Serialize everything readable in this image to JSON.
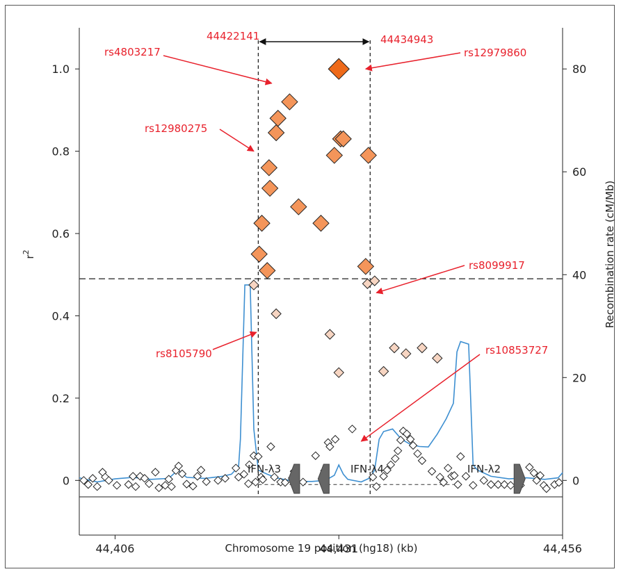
{
  "chart_data": {
    "type": "scatter",
    "xlabel": "Chromosome 19 position (hg18) (kb)",
    "ylabel": "r²",
    "y2label": "Recombination rate (cM/Mb)",
    "xlim": [
      44402,
      44456
    ],
    "ylim": [
      -0.04,
      1.1
    ],
    "y2lim": [
      -3.2,
      88
    ],
    "x_ticks": [
      44406,
      44431,
      44456
    ],
    "x_tick_labels": [
      "44,406",
      "44,431",
      "44,456"
    ],
    "y_ticks": [
      0,
      0.2,
      0.4,
      0.6,
      0.8,
      1.0
    ],
    "y_tick_labels": [
      "0",
      "0.2",
      "0.4",
      "0.6",
      "0.8",
      "1.0"
    ],
    "y2_ticks": [
      0,
      20,
      40,
      60,
      80
    ],
    "y2_tick_labels": [
      "0",
      "20",
      "40",
      "60",
      "80"
    ],
    "threshold_r2": 0.49,
    "region": {
      "start": 44422.0,
      "end": 44434.5,
      "start_label": "44422141",
      "end_label": "44434943"
    },
    "lead_snp": {
      "x": 44431.0,
      "y": 1.0,
      "color": "#ee6a1a"
    },
    "high_ld_points": {
      "color": "#f4955a",
      "points": [
        [
          44422.1,
          0.55
        ],
        [
          44422.4,
          0.625
        ],
        [
          44423.2,
          0.76
        ],
        [
          44423.3,
          0.71
        ],
        [
          44423.0,
          0.51
        ],
        [
          44424.0,
          0.845
        ],
        [
          44424.2,
          0.88
        ],
        [
          44425.5,
          0.92
        ],
        [
          44426.5,
          0.665
        ],
        [
          44429.0,
          0.625
        ],
        [
          44430.5,
          0.79
        ],
        [
          44431.2,
          0.83
        ],
        [
          44431.5,
          0.83
        ],
        [
          44434.0,
          0.52
        ],
        [
          44434.3,
          0.79
        ]
      ]
    },
    "low_ld_points": {
      "color": "#f7d5c2",
      "points": [
        [
          44421.5,
          0.475
        ],
        [
          44424.0,
          0.405
        ],
        [
          44430.0,
          0.355
        ],
        [
          44431.0,
          0.262
        ],
        [
          44434.2,
          0.478
        ],
        [
          44435.0,
          0.485
        ],
        [
          44436.0,
          0.265
        ],
        [
          44437.2,
          0.322
        ],
        [
          44438.5,
          0.308
        ],
        [
          44440.3,
          0.322
        ],
        [
          44442.0,
          0.297
        ]
      ]
    },
    "null_points": {
      "color": "#ffffff",
      "points": [
        [
          44402.5,
          0.0
        ],
        [
          44403.0,
          -0.01
        ],
        [
          44403.5,
          0.005
        ],
        [
          44404.0,
          -0.015
        ],
        [
          44404.6,
          0.02
        ],
        [
          44404.9,
          0.008
        ],
        [
          44405.3,
          0.0
        ],
        [
          44406.2,
          -0.012
        ],
        [
          44407.5,
          -0.01
        ],
        [
          44408.0,
          0.01
        ],
        [
          44408.3,
          -0.015
        ],
        [
          44408.8,
          0.01
        ],
        [
          44409.3,
          0.005
        ],
        [
          44409.8,
          -0.008
        ],
        [
          44410.5,
          0.02
        ],
        [
          44410.9,
          -0.018
        ],
        [
          44411.6,
          -0.012
        ],
        [
          44412.0,
          0.003
        ],
        [
          44412.3,
          -0.015
        ],
        [
          44412.8,
          0.024
        ],
        [
          44413.1,
          0.035
        ],
        [
          44413.5,
          0.016
        ],
        [
          44414.0,
          -0.009
        ],
        [
          44414.7,
          -0.014
        ],
        [
          44415.2,
          0.01
        ],
        [
          44415.6,
          0.025
        ],
        [
          44416.2,
          -0.003
        ],
        [
          44417.5,
          0.0
        ],
        [
          44418.3,
          0.005
        ],
        [
          44419.5,
          0.03
        ],
        [
          44419.8,
          0.008
        ],
        [
          44420.4,
          0.015
        ],
        [
          44421.0,
          0.038
        ],
        [
          44421.5,
          0.06
        ],
        [
          44422.0,
          0.058
        ],
        [
          44420.9,
          -0.008
        ],
        [
          44421.7,
          -0.004
        ],
        [
          44422.3,
          0.008
        ],
        [
          44422.5,
          0.002
        ],
        [
          44423.4,
          0.082
        ],
        [
          44423.8,
          0.008
        ],
        [
          44424.5,
          -0.004
        ],
        [
          44425.0,
          -0.005
        ],
        [
          44425.8,
          0.006
        ],
        [
          44426.0,
          0.022
        ],
        [
          44427.0,
          -0.004
        ],
        [
          44428.4,
          0.06
        ],
        [
          44429.4,
          0.024
        ],
        [
          44429.8,
          0.092
        ],
        [
          44430.0,
          0.082
        ],
        [
          44430.6,
          0.1
        ],
        [
          44432.5,
          0.125
        ],
        [
          44434.8,
          0.008
        ],
        [
          44435.2,
          -0.015
        ],
        [
          44436.0,
          0.01
        ],
        [
          44436.4,
          0.025
        ],
        [
          44436.8,
          0.038
        ],
        [
          44437.3,
          0.053
        ],
        [
          44437.6,
          0.072
        ],
        [
          44437.9,
          0.098
        ],
        [
          44438.2,
          0.12
        ],
        [
          44438.6,
          0.113
        ],
        [
          44439.0,
          0.1
        ],
        [
          44439.3,
          0.085
        ],
        [
          44439.8,
          0.065
        ],
        [
          44440.3,
          0.048
        ],
        [
          44441.4,
          0.022
        ],
        [
          44442.3,
          0.008
        ],
        [
          44442.7,
          -0.005
        ],
        [
          44443.2,
          0.03
        ],
        [
          44443.6,
          0.01
        ],
        [
          44443.9,
          0.012
        ],
        [
          44444.3,
          -0.01
        ],
        [
          44444.6,
          0.058
        ],
        [
          44445.2,
          0.01
        ],
        [
          44446.0,
          -0.012
        ],
        [
          44447.2,
          0.0
        ],
        [
          44448.0,
          -0.01
        ],
        [
          44448.8,
          -0.01
        ],
        [
          44449.5,
          -0.01
        ],
        [
          44450.2,
          -0.012
        ],
        [
          44451.3,
          -0.012
        ],
        [
          44452.3,
          0.032
        ],
        [
          44452.8,
          0.018
        ],
        [
          44453.1,
          0.0
        ],
        [
          44453.5,
          0.012
        ],
        [
          44453.9,
          -0.012
        ],
        [
          44454.2,
          -0.02
        ],
        [
          44455.1,
          -0.01
        ],
        [
          44455.6,
          -0.005
        ]
      ]
    },
    "recombination_rate": {
      "color": "#3d8fd1",
      "points": [
        [
          44402,
          0.5
        ],
        [
          44404,
          -0.3
        ],
        [
          44406,
          0.3
        ],
        [
          44408,
          0.6
        ],
        [
          44410,
          0.2
        ],
        [
          44412,
          0.4
        ],
        [
          44413,
          2.0
        ],
        [
          44414,
          0.6
        ],
        [
          44416,
          0.4
        ],
        [
          44418,
          0.8
        ],
        [
          44419,
          1.2
        ],
        [
          44419.8,
          2.7
        ],
        [
          44420,
          8.0
        ],
        [
          44420.5,
          38.0
        ],
        [
          44421.1,
          38.0
        ],
        [
          44421.5,
          10.0
        ],
        [
          44422,
          2.0
        ],
        [
          44423,
          1.2
        ],
        [
          44424,
          0.5
        ],
        [
          44426,
          -0.2
        ],
        [
          44428,
          -0.2
        ],
        [
          44429.5,
          0.0
        ],
        [
          44430.5,
          1.0
        ],
        [
          44431.0,
          3.0
        ],
        [
          44431.5,
          1.2
        ],
        [
          44432,
          0.2
        ],
        [
          44433.5,
          -0.3
        ],
        [
          44434.5,
          0.5
        ],
        [
          44435.0,
          2.0
        ],
        [
          44435.5,
          8.0
        ],
        [
          44436.0,
          9.5
        ],
        [
          44437.0,
          10.0
        ],
        [
          44438.0,
          8.0
        ],
        [
          44439.0,
          7.0
        ],
        [
          44440.0,
          6.6
        ],
        [
          44441.0,
          6.5
        ],
        [
          44442.0,
          9.0
        ],
        [
          44443.0,
          12.0
        ],
        [
          44443.8,
          15.0
        ],
        [
          44444.2,
          25.0
        ],
        [
          44444.6,
          27.0
        ],
        [
          44445.5,
          26.5
        ],
        [
          44446.0,
          3.0
        ],
        [
          44446.5,
          2.0
        ],
        [
          44448.0,
          0.8
        ],
        [
          44450.0,
          0.3
        ],
        [
          44452.0,
          0.5
        ],
        [
          44454.0,
          0.2
        ],
        [
          44455.5,
          0.5
        ],
        [
          44456,
          1.5
        ]
      ]
    },
    "annotations": [
      {
        "label": "rs4803217",
        "target": [
          44423.5,
          0.965
        ]
      },
      {
        "label": "rs12979860",
        "target": [
          44434.0,
          1.0
        ]
      },
      {
        "label": "rs12980275",
        "target": [
          44421.5,
          0.8
        ]
      },
      {
        "label": "rs8099917",
        "target": [
          44435.2,
          0.456
        ]
      },
      {
        "label": "rs8105790",
        "target": [
          44421.8,
          0.36
        ]
      },
      {
        "label": "rs10853727",
        "target": [
          44433.5,
          0.095
        ]
      }
    ],
    "genes": [
      {
        "name": "IFN-λ3",
        "direction": "left",
        "x": 44426.0
      },
      {
        "name": "IFN-λ4",
        "direction": "left",
        "x": 44429.3
      },
      {
        "name": "IFN-λ2",
        "direction": "right",
        "x": 44451.2
      }
    ]
  }
}
